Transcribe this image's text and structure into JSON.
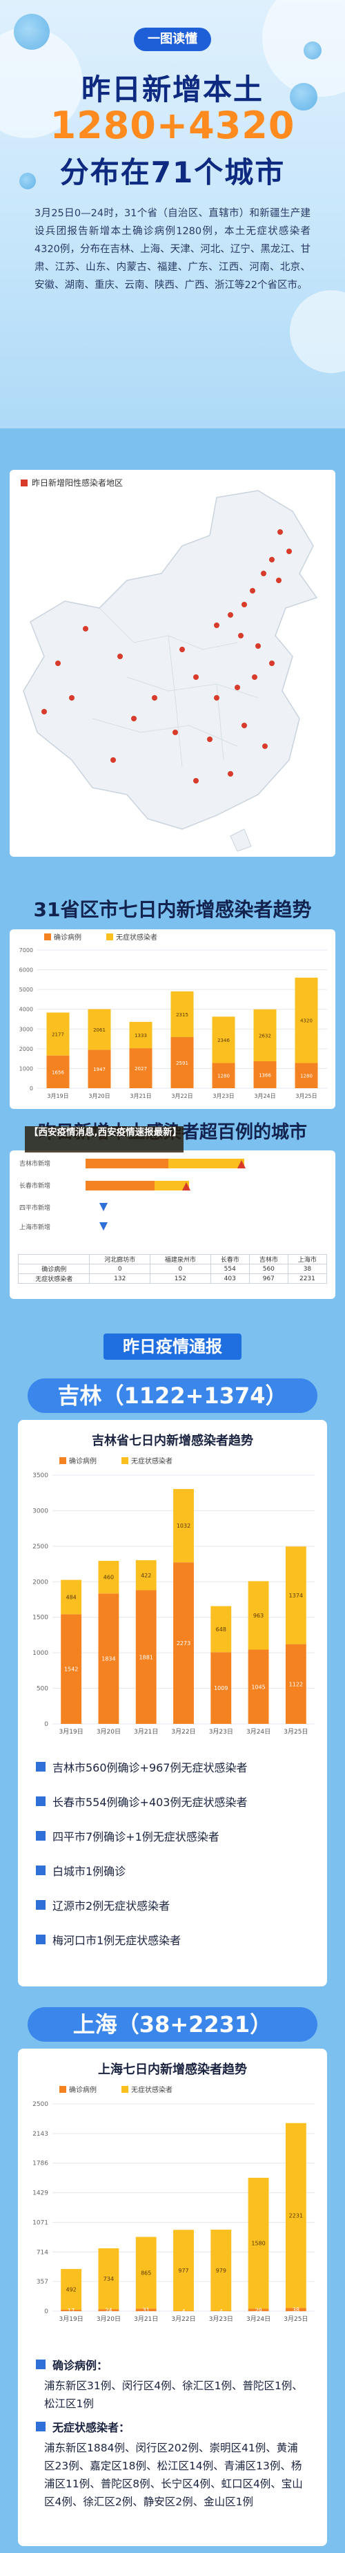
{
  "header": {
    "tag": "一图读懂",
    "title_line1": "昨日新增本土",
    "title_line2": "1280+4320",
    "title_line3": "分布在71个城市",
    "intro": "3月25日0—24时，31个省（自治区、直辖市）和新疆生产建设兵团报告新增本土确诊病例1280例，本土无症状感染者4320例，分布在吉林、上海、天津、河北、辽宁、黑龙江、甘肃、江苏、山东、内蒙古、福建、广东、江西、河南、北京、安徽、湖南、重庆、云南、陕西、广西、浙江等22个省区市。"
  },
  "map": {
    "legend": "昨日新增阳性感染者地区"
  },
  "trend": {
    "title": "31省区市七日内新增感染者趋势",
    "legend": [
      "确诊病例",
      "无症状感染者"
    ],
    "colors": {
      "confirmed": "#f58220",
      "asymptomatic": "#fbbf1f"
    }
  },
  "chart_data": [
    {
      "type": "bar",
      "title": "31省区市七日内新增感染者趋势",
      "categories": [
        "3月19日",
        "3月20日",
        "3月21日",
        "3月22日",
        "3月23日",
        "3月24日",
        "3月25日"
      ],
      "series": [
        {
          "name": "确诊病例",
          "values": [
            1656,
            1947,
            2027,
            2591,
            1280,
            1366,
            1280
          ]
        },
        {
          "name": "无症状感染者",
          "values": [
            2177,
            2061,
            1333,
            2315,
            2346,
            2632,
            4320
          ]
        }
      ],
      "ylim": [
        0,
        7000
      ]
    },
    {
      "type": "bar",
      "title": "吉林省七日内新增感染者趋势",
      "categories": [
        "3月19日",
        "3月20日",
        "3月21日",
        "3月22日",
        "3月23日",
        "3月24日",
        "3月25日"
      ],
      "series": [
        {
          "name": "确诊病例",
          "values": [
            1542,
            1834,
            1881,
            2273,
            1009,
            1045,
            1122
          ]
        },
        {
          "name": "无症状感染者",
          "values": [
            484,
            460,
            422,
            1032,
            648,
            963,
            1374
          ]
        }
      ],
      "ylim": [
        0,
        3500
      ]
    },
    {
      "type": "bar",
      "title": "上海七日内新增感染者趋势",
      "categories": [
        "3月19日",
        "3月20日",
        "3月21日",
        "3月22日",
        "3月23日",
        "3月24日",
        "3月25日"
      ],
      "series": [
        {
          "name": "确诊病例",
          "values": [
            17,
            24,
            31,
            4,
            4,
            29,
            38
          ]
        },
        {
          "name": "无症状感染者",
          "values": [
            492,
            734,
            865,
            977,
            979,
            1580,
            2231
          ]
        }
      ],
      "ylim": [
        0,
        2500
      ]
    }
  ],
  "hundred": {
    "title": "昨日新增本土感染者超百例的城市",
    "rows": [
      "吉林市新增",
      "长春市新增",
      "四平市新增",
      "上海市新增"
    ],
    "table": {
      "header": [
        "",
        "河北廊坊市",
        "福建泉州市",
        "长春市",
        "吉林市",
        "上海市"
      ],
      "row1": [
        "确诊病例",
        "0",
        "0",
        "554",
        "560",
        "38"
      ],
      "row2": [
        "无症状感染者",
        "132",
        "152",
        "403",
        "967",
        "2231"
      ]
    }
  },
  "banner": "【西安疫情消息,西安疫情速报最新】",
  "yesterday": {
    "ribbon": "昨日疫情通报"
  },
  "jilin": {
    "header": "吉林（1122+1374）",
    "chart_title": "吉林省七日内新增感染者趋势",
    "items": [
      "吉林市560例确诊+967例无症状感染者",
      "长春市554例确诊+403例无症状感染者",
      "四平市7例确诊+1例无症状感染者",
      "白城市1例确诊",
      "辽源市2例无症状感染者",
      "梅河口市1例无症状感染者"
    ]
  },
  "shanghai": {
    "header": "上海（38+2231）",
    "chart_title": "上海七日内新增感染者趋势",
    "confirmed_head": "确诊病例：",
    "confirmed_text": "浦东新区31例、闵行区4例、徐汇区1例、普陀区1例、松江区1例",
    "asym_head": "无症状感染者：",
    "asym_text": "浦东新区1884例、闵行区202例、崇明区41例、黄浦区23例、嘉定区18例、松江区14例、青浦区13例、杨浦区11例、普陀区8例、长宁区4例、虹口区4例、宝山区4例、徐汇区2例、静安区2例、金山区1例"
  }
}
